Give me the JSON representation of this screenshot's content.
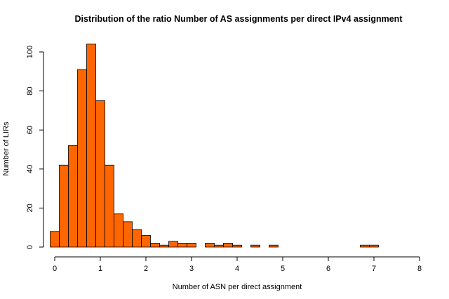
{
  "chart_data": {
    "type": "bar",
    "title": "Distribution of the ratio Number of AS assignments per direct IPv4 assignment",
    "xlabel": "Number of ASN per direct assignment",
    "ylabel": "Number of LIRs",
    "xlim": [
      0,
      8
    ],
    "ylim": [
      0,
      104
    ],
    "x_ticks": [
      0,
      1,
      2,
      3,
      4,
      5,
      6,
      7,
      8
    ],
    "y_ticks": [
      0,
      20,
      40,
      60,
      80,
      100
    ],
    "bin_width": 0.2,
    "bins_start": [
      -0.1,
      0.1,
      0.3,
      0.5,
      0.7,
      0.9,
      1.1,
      1.3,
      1.5,
      1.7,
      1.9,
      2.1,
      2.3,
      2.5,
      2.7,
      2.9,
      3.1,
      3.3,
      3.5,
      3.7,
      3.9,
      4.1,
      4.3,
      4.5,
      4.7,
      4.9,
      5.1,
      5.3,
      5.5,
      5.7,
      5.9,
      6.1,
      6.3,
      6.5,
      6.7,
      6.9,
      7.1,
      7.3,
      7.5
    ],
    "values": [
      8,
      42,
      52,
      91,
      104,
      75,
      42,
      17,
      13,
      9,
      6,
      2,
      1,
      3,
      2,
      2,
      0,
      2,
      1,
      2,
      1,
      0,
      1,
      0,
      1,
      0,
      0,
      0,
      0,
      0,
      0,
      0,
      0,
      0,
      1,
      1,
      0,
      0,
      0
    ],
    "bar_color": "#ff6600",
    "bar_stroke": "#000000",
    "grid": false
  }
}
